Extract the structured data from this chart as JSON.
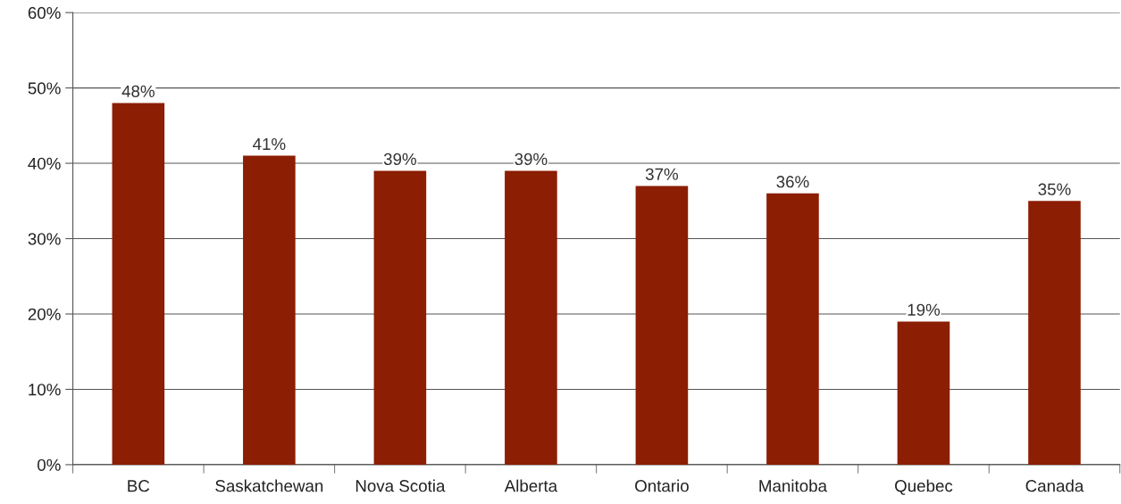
{
  "chart_data": {
    "type": "bar",
    "categories": [
      "BC",
      "Saskatchewan",
      "Nova Scotia",
      "Alberta",
      "Ontario",
      "Manitoba",
      "Quebec",
      "Canada"
    ],
    "values": [
      48,
      41,
      39,
      39,
      37,
      36,
      19,
      35
    ],
    "color": "#8b1e03",
    "ylim": [
      0,
      60
    ],
    "yticks": [
      {
        "value": 0,
        "label": "0%"
      },
      {
        "value": 10,
        "label": "10%"
      },
      {
        "value": 20,
        "label": "20%"
      },
      {
        "value": 30,
        "label": "30%"
      },
      {
        "value": 40,
        "label": "40%"
      },
      {
        "value": 50,
        "label": "50%"
      },
      {
        "value": 60,
        "label": "60%"
      }
    ],
    "value_labels": [
      "48%",
      "41%",
      "39%",
      "39%",
      "37%",
      "36%",
      "19%",
      "35%"
    ],
    "grid": "y"
  }
}
